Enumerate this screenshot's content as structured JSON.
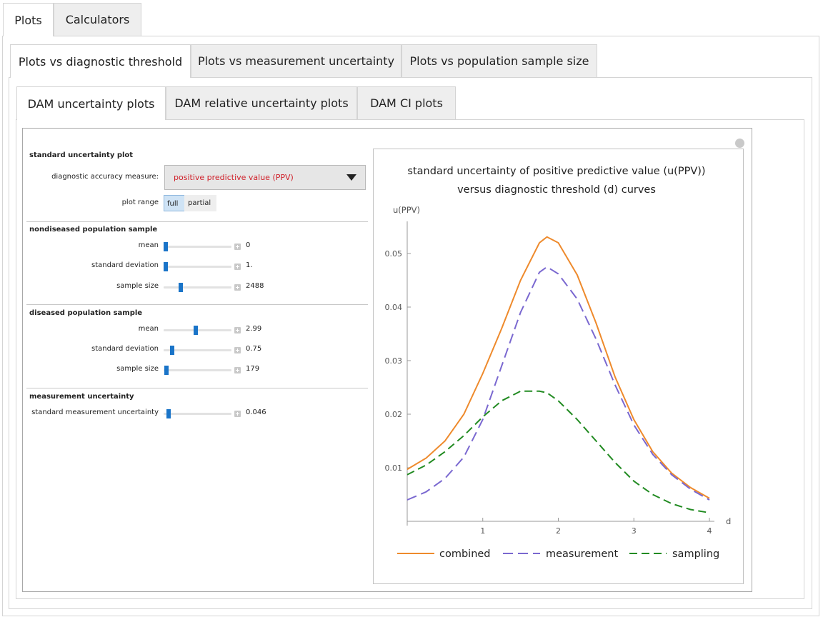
{
  "tabs": [
    "Plots",
    "Calculators"
  ],
  "subtabs": [
    "Plots vs diagnostic threshold",
    "Plots vs measurement uncertainty",
    "Plots vs population sample size"
  ],
  "plot_tabs": [
    "DAM uncertainty plots",
    "DAM relative uncertainty plots",
    "DAM CI plots"
  ],
  "sections": [
    {
      "title": "standard uncertainty plot",
      "measure": {
        "label": "diagnostic accuracy measure:",
        "value": "positive predictive value (PPV)"
      },
      "plot_range": {
        "label": "plot range",
        "options": [
          "full",
          "partial"
        ]
      }
    },
    {
      "title": "nondiseased population sample",
      "sliders": [
        {
          "label": "mean",
          "value": "0"
        },
        {
          "label": "standard deviation",
          "value": "1."
        },
        {
          "label": "sample size",
          "value": "2488"
        }
      ]
    },
    {
      "title": "diseased population sample",
      "sliders": [
        {
          "label": "mean",
          "value": "2.99"
        },
        {
          "label": "standard deviation",
          "value": "0.75"
        },
        {
          "label": "sample size",
          "value": "179"
        }
      ]
    },
    {
      "title": "measurement uncertainty",
      "sliders": [
        {
          "label": "standard measurement uncertainty",
          "value": "0.046"
        }
      ]
    }
  ],
  "chart_data": {
    "type": "line",
    "title": [
      "standard uncertainty of positive predictive value (u(PPV))",
      "versus diagnostic threshold (d) curves"
    ],
    "y_label": "u(PPV)",
    "x_label": "d",
    "x": [
      0,
      0.25,
      0.5,
      0.75,
      1,
      1.25,
      1.5,
      1.75,
      1.85,
      2,
      2.25,
      2.5,
      2.75,
      3,
      3.25,
      3.5,
      3.75,
      4
    ],
    "series": [
      {
        "name": "combined",
        "color": "#ee8a2c",
        "line_style": "solid",
        "values": [
          0.0097,
          0.0118,
          0.015,
          0.02,
          0.0276,
          0.036,
          0.045,
          0.052,
          0.0531,
          0.052,
          0.046,
          0.037,
          0.027,
          0.019,
          0.013,
          0.009,
          0.0063,
          0.0043
        ]
      },
      {
        "name": "measurement",
        "color": "#7a68d0",
        "line_style": "dashed",
        "values": [
          0.004,
          0.0055,
          0.008,
          0.012,
          0.019,
          0.029,
          0.039,
          0.0465,
          0.0475,
          0.0462,
          0.0415,
          0.034,
          0.0255,
          0.018,
          0.0125,
          0.0087,
          0.006,
          0.004
        ]
      },
      {
        "name": "sampling",
        "color": "#228b22",
        "line_style": "dashed",
        "values": [
          0.0087,
          0.0105,
          0.013,
          0.016,
          0.0195,
          0.0225,
          0.0243,
          0.0243,
          0.024,
          0.0225,
          0.019,
          0.015,
          0.011,
          0.0075,
          0.005,
          0.0033,
          0.0022,
          0.0016
        ]
      }
    ],
    "xlim": [
      0,
      4
    ],
    "ylim": [
      0,
      0.056
    ],
    "xticks": [
      1,
      2,
      3,
      4
    ],
    "yticks": [
      0.01,
      0.02,
      0.03,
      0.04,
      0.05
    ],
    "grid": false,
    "legend": "bottom"
  }
}
